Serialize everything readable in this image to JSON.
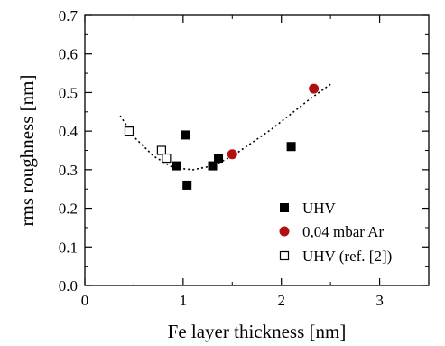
{
  "chart_data": {
    "type": "scatter",
    "xlabel": "Fe layer thickness [nm]",
    "ylabel": "rms roughness [nm]",
    "xlim": [
      0,
      3.5
    ],
    "ylim": [
      0,
      0.7
    ],
    "xticks": [
      "0",
      "1",
      "2",
      "3"
    ],
    "yticks": [
      "0.0",
      "0.1",
      "0.2",
      "0.3",
      "0.4",
      "0.5",
      "0.6",
      "0.7"
    ],
    "legend_position": "bottom-right",
    "series": [
      {
        "name": "UHV",
        "marker": "filled-square",
        "color": "#000000",
        "points": [
          {
            "x": 0.93,
            "y": 0.31
          },
          {
            "x": 1.02,
            "y": 0.39
          },
          {
            "x": 1.04,
            "y": 0.26
          },
          {
            "x": 1.3,
            "y": 0.31
          },
          {
            "x": 1.36,
            "y": 0.33
          },
          {
            "x": 2.1,
            "y": 0.36
          }
        ]
      },
      {
        "name": "0,04 mbar Ar",
        "marker": "filled-circle",
        "color": "#b01010",
        "points": [
          {
            "x": 1.5,
            "y": 0.34
          },
          {
            "x": 2.33,
            "y": 0.51
          }
        ]
      },
      {
        "name": "UHV (ref. [2])",
        "marker": "open-square",
        "color": "#000000",
        "points": [
          {
            "x": 0.45,
            "y": 0.4
          },
          {
            "x": 0.78,
            "y": 0.35
          },
          {
            "x": 0.83,
            "y": 0.33
          }
        ]
      }
    ],
    "fit_curve": {
      "style": "dotted",
      "points": [
        {
          "x": 0.36,
          "y": 0.44
        },
        {
          "x": 0.5,
          "y": 0.385
        },
        {
          "x": 0.7,
          "y": 0.335
        },
        {
          "x": 0.9,
          "y": 0.305
        },
        {
          "x": 1.1,
          "y": 0.3
        },
        {
          "x": 1.3,
          "y": 0.31
        },
        {
          "x": 1.5,
          "y": 0.335
        },
        {
          "x": 1.7,
          "y": 0.37
        },
        {
          "x": 1.9,
          "y": 0.405
        },
        {
          "x": 2.1,
          "y": 0.445
        },
        {
          "x": 2.3,
          "y": 0.485
        },
        {
          "x": 2.52,
          "y": 0.525
        }
      ]
    }
  }
}
